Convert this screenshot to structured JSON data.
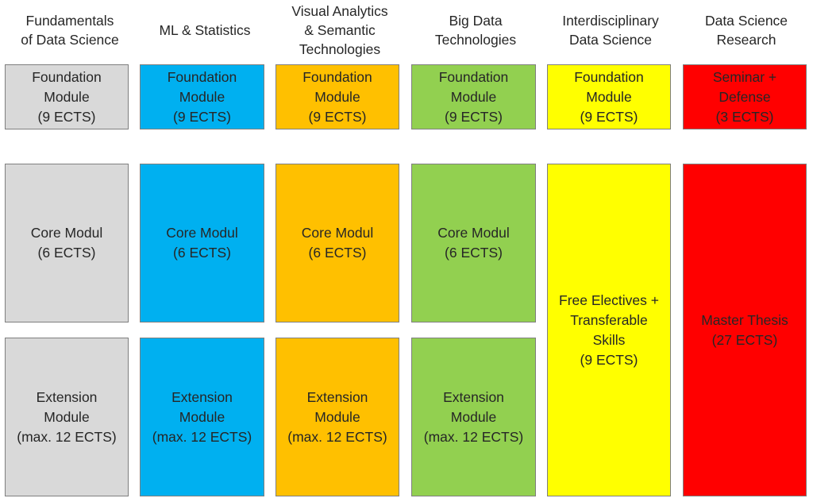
{
  "colors": {
    "grey": "#d9d9d9",
    "blue": "#00b0f0",
    "orange": "#ffc000",
    "green": "#92d050",
    "yellow": "#ffff00",
    "red": "#ff0000",
    "border": "#7f7f7f"
  },
  "columns": [
    {
      "heading": "Fundamentals\nof Data Science",
      "foundation": "Foundation\nModule\n(9 ECTS)",
      "core": "Core Modul\n(6 ECTS)",
      "extension": "Extension\nModule\n(max. 12 ECTS)"
    },
    {
      "heading": "ML & Statistics",
      "foundation": "Foundation\nModule\n(9 ECTS)",
      "core": "Core Modul\n(6 ECTS)",
      "extension": "Extension\nModule\n(max. 12 ECTS)"
    },
    {
      "heading": "Visual Analytics\n& Semantic\nTechnologies",
      "foundation": "Foundation\nModule\n(9 ECTS)",
      "core": "Core Modul\n(6 ECTS)",
      "extension": "Extension\nModule\n(max. 12 ECTS)"
    },
    {
      "heading": "Big Data\nTechnologies",
      "foundation": "Foundation\nModule\n(9 ECTS)",
      "core": "Core Modul\n(6 ECTS)",
      "extension": "Extension\nModule\n(max. 12 ECTS)"
    },
    {
      "heading": "Interdisciplinary\nData Science",
      "foundation": "Foundation\nModule\n(9 ECTS)",
      "electives": "Free Electives +\nTransferable\nSkills\n(9 ECTS)"
    },
    {
      "heading": "Data Science\nResearch",
      "foundation": "Seminar +\nDefense\n(3 ECTS)",
      "thesis": "Master Thesis\n(27 ECTS)"
    }
  ]
}
